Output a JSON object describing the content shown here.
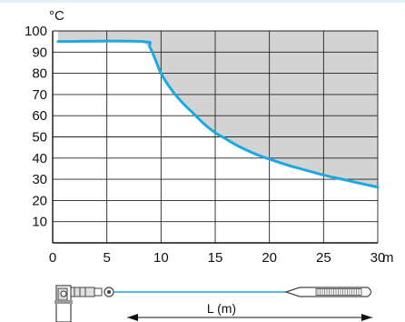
{
  "chart_data": {
    "type": "line",
    "xlabel": "m",
    "ylabel": "°C",
    "xlim": [
      0,
      30
    ],
    "ylim": [
      0,
      100
    ],
    "x_ticks": [
      0,
      5,
      10,
      15,
      20,
      25,
      30
    ],
    "y_ticks": [
      10,
      20,
      30,
      40,
      50,
      60,
      70,
      80,
      90,
      100
    ],
    "grid": true,
    "series": [
      {
        "color": "#1ba9e1",
        "x": [
          0.5,
          8.2,
          9.0,
          10.0,
          11.0,
          12.0,
          13.0,
          14.0,
          15.0,
          16.0,
          17.0,
          18.0,
          19.0,
          20.0,
          21.0,
          22.0,
          23.0,
          24.0,
          25.0,
          26.0,
          27.0,
          28.0,
          29.0,
          30.0
        ],
        "y": [
          95,
          95,
          92,
          80,
          72,
          66,
          61,
          56,
          52,
          49,
          46,
          43.5,
          41.3,
          39.5,
          37.8,
          36.2,
          34.8,
          33.4,
          32.0,
          30.8,
          29.7,
          28.5,
          27.4,
          26.3
        ]
      }
    ],
    "shaded_region_color": "#d3d3d3"
  },
  "diagram": {
    "length_label": "L (m)",
    "line_color": "#1ba9e1"
  }
}
